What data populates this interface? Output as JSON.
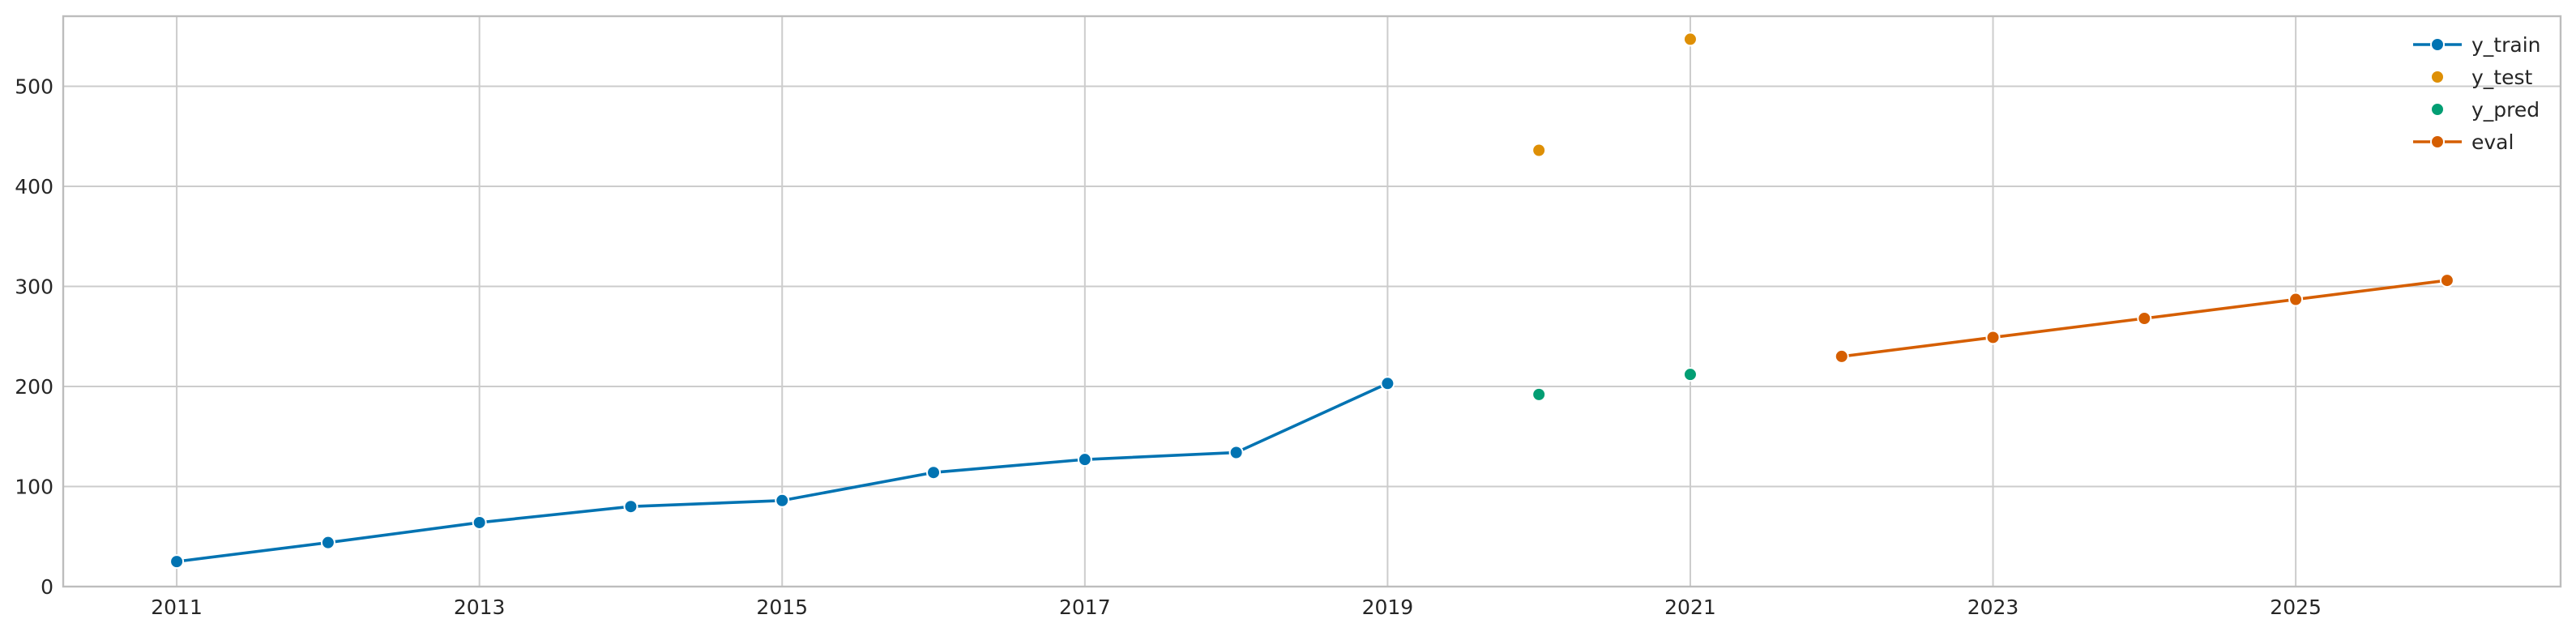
{
  "chart_data": {
    "type": "line",
    "title": "",
    "xlabel": "",
    "ylabel": "",
    "xlim": [
      2010.25,
      2026.75
    ],
    "ylim": [
      0,
      570
    ],
    "xticks": [
      2011,
      2013,
      2015,
      2017,
      2019,
      2021,
      2023,
      2025
    ],
    "xtick_labels": [
      "2011",
      "2013",
      "2015",
      "2017",
      "2019",
      "2021",
      "2023",
      "2025"
    ],
    "xgrid": [
      2011,
      2013,
      2015,
      2017,
      2019,
      2021,
      2023,
      2025
    ],
    "yticks": [
      0,
      100,
      200,
      300,
      400,
      500
    ],
    "ytick_labels": [
      "0",
      "100",
      "200",
      "300",
      "400",
      "500"
    ],
    "grid": true,
    "legend_position": "top-right",
    "series": [
      {
        "name": "y_train",
        "style": "line-marker",
        "color": "#0173b2",
        "x": [
          2011,
          2012,
          2013,
          2014,
          2015,
          2016,
          2017,
          2018,
          2019
        ],
        "values": [
          25,
          44,
          64,
          80,
          86,
          114,
          127,
          134,
          203
        ]
      },
      {
        "name": "y_test",
        "style": "marker",
        "color": "#de8f05",
        "x": [
          2020,
          2021
        ],
        "values": [
          436,
          547
        ]
      },
      {
        "name": "y_pred",
        "style": "marker",
        "color": "#029e73",
        "x": [
          2020,
          2021
        ],
        "values": [
          192,
          212
        ]
      },
      {
        "name": "eval",
        "style": "line-marker",
        "color": "#d55e00",
        "x": [
          2022,
          2023,
          2024,
          2025,
          2026
        ],
        "values": [
          230,
          249,
          268,
          287,
          306
        ]
      }
    ]
  }
}
